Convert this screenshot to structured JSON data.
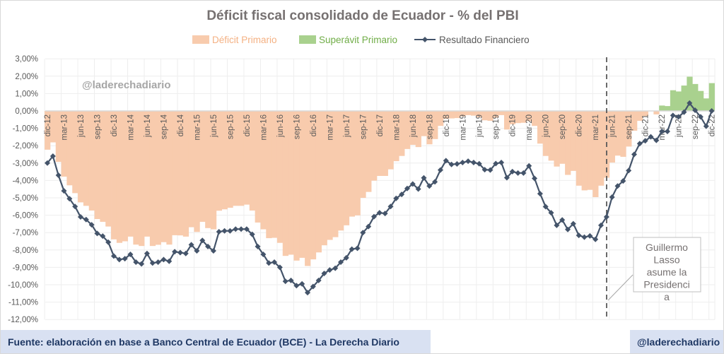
{
  "chart_data": {
    "type": "bar+line",
    "title": "Déficit fiscal consolidado de Ecuador - % del PBI",
    "legend": [
      "Déficit Primario",
      "Superávit Primario",
      "Resultado Financiero"
    ],
    "legend_placement": "top",
    "colors": {
      "deficit": "#f8cbad",
      "superavit": "#a9d18e",
      "line": "#44546a",
      "grid": "#eeeeee",
      "title": "#767171"
    },
    "ylim": [
      -12,
      3
    ],
    "yticks": [
      3,
      2,
      1,
      0,
      -1,
      -2,
      -3,
      -4,
      -5,
      -6,
      -7,
      -8,
      -9,
      -10,
      -11,
      -12
    ],
    "ytick_labels": [
      "3,00%",
      "2,00%",
      "1,00%",
      "0,00%",
      "-1,00%",
      "-2,00%",
      "-3,00%",
      "-4,00%",
      "-5,00%",
      "-6,00%",
      "-7,00%",
      "-8,00%",
      "-9,00%",
      "-10,00%",
      "-11,00%",
      "-12,00%"
    ],
    "x_period": "monthly, dic-12 to dic-22",
    "x_tick_labels": [
      "dic-12",
      "mar-13",
      "jun-13",
      "sep-13",
      "dic-13",
      "mar-14",
      "jun-14",
      "sep-14",
      "dic-14",
      "mar-15",
      "jun-15",
      "sep-15",
      "dic-15",
      "mar-16",
      "jun-16",
      "sep-16",
      "dic-16",
      "mar-17",
      "jun-17",
      "sep-17",
      "dic-17",
      "mar-18",
      "jun-18",
      "sep-18",
      "dic-18",
      "mar-19",
      "jun-19",
      "sep-19",
      "dic-19",
      "mar-20",
      "jun-20",
      "sep-20",
      "dic-20",
      "mar-21",
      "jun-21",
      "sep-21",
      "dic-21",
      "mar-22",
      "jun-22",
      "sep-22",
      "dic-22"
    ],
    "primario": [
      -2.23,
      -1.81,
      -2.93,
      -3.78,
      -4.28,
      -4.73,
      -5.26,
      -5.46,
      -5.73,
      -6.22,
      -6.38,
      -6.65,
      -7.39,
      -7.59,
      -7.5,
      -7.23,
      -7.69,
      -7.77,
      -7.23,
      -7.77,
      -7.7,
      -7.55,
      -7.69,
      -7.15,
      -7.16,
      -7.23,
      -6.69,
      -6.96,
      -6.38,
      -6.74,
      -6.81,
      -5.74,
      -5.66,
      -5.57,
      -5.46,
      -5.46,
      -5.39,
      -5.73,
      -6.42,
      -6.81,
      -7.32,
      -7.3,
      -7.59,
      -8.34,
      -8.27,
      -8.61,
      -8.45,
      -8.92,
      -8.54,
      -8.14,
      -7.73,
      -7.42,
      -7.26,
      -6.88,
      -6.58,
      -6.08,
      -6.01,
      -5.0,
      -4.66,
      -4.01,
      -3.74,
      -3.74,
      -3.36,
      -2.89,
      -2.59,
      -2.19,
      -1.95,
      -2.08,
      -1.45,
      -1.92,
      -1.62,
      -0.86,
      -0.46,
      -0.43,
      -0.41,
      -0.32,
      -0.24,
      -0.27,
      -0.36,
      -0.54,
      -0.57,
      -0.38,
      -0.24,
      -1.07,
      -0.77,
      -0.7,
      -0.68,
      -0.59,
      -0.86,
      -1.88,
      -2.59,
      -2.86,
      -3.2,
      -3.04,
      -3.68,
      -3.45,
      -4.3,
      -4.57,
      -4.54,
      -4.96,
      -4.3,
      -3.84,
      -2.97,
      -2.57,
      -2.64,
      -2.05,
      -1.14,
      -0.57,
      -0.3,
      0.0,
      -0.2,
      0.31,
      0.28,
      1.19,
      1.12,
      1.46,
      1.97,
      1.55,
      1.15,
      0.72,
      1.6
    ],
    "resultado_financiero": [
      -3.0,
      -2.6,
      -3.7,
      -4.6,
      -5.05,
      -5.5,
      -6.1,
      -6.25,
      -6.55,
      -7.05,
      -7.2,
      -7.55,
      -8.35,
      -8.55,
      -8.5,
      -8.25,
      -8.7,
      -8.8,
      -8.2,
      -8.75,
      -8.7,
      -8.55,
      -8.65,
      -8.1,
      -8.15,
      -8.2,
      -7.7,
      -8.05,
      -7.45,
      -7.8,
      -8.05,
      -6.95,
      -6.9,
      -6.9,
      -6.8,
      -6.8,
      -6.8,
      -7.1,
      -7.8,
      -8.25,
      -8.75,
      -8.7,
      -9.0,
      -9.8,
      -9.75,
      -10.05,
      -9.95,
      -10.45,
      -10.1,
      -9.75,
      -9.35,
      -9.15,
      -9.05,
      -8.7,
      -8.45,
      -7.95,
      -7.9,
      -7.0,
      -6.65,
      -6.08,
      -5.86,
      -5.9,
      -5.5,
      -5.03,
      -4.8,
      -4.46,
      -4.2,
      -4.49,
      -3.85,
      -4.32,
      -4.08,
      -3.4,
      -2.86,
      -3.08,
      -3.05,
      -2.97,
      -2.89,
      -2.97,
      -3.04,
      -3.38,
      -3.4,
      -3.03,
      -2.97,
      -3.84,
      -3.49,
      -3.57,
      -3.57,
      -3.16,
      -3.88,
      -4.76,
      -5.51,
      -5.86,
      -6.58,
      -6.27,
      -6.82,
      -6.49,
      -7.16,
      -7.26,
      -7.19,
      -7.39,
      -6.58,
      -6.1,
      -4.96,
      -4.32,
      -4.03,
      -3.43,
      -2.5,
      -1.88,
      -1.72,
      -1.49,
      -1.69,
      -1.18,
      -1.18,
      -0.26,
      -0.34,
      -0.07,
      0.45,
      0.04,
      -0.34,
      -0.88,
      0.0
    ],
    "annotation": {
      "text_lines": [
        "Guillermo",
        "Lasso",
        "asume la",
        "Presidenci",
        "a"
      ],
      "at_month": "may-21"
    },
    "watermark": "@laderechadiario"
  },
  "footer": {
    "source": "Fuente: elaboración en base a Banco Central de Ecuador (BCE) - La Derecha Diario",
    "handle": "@laderechadiario"
  }
}
